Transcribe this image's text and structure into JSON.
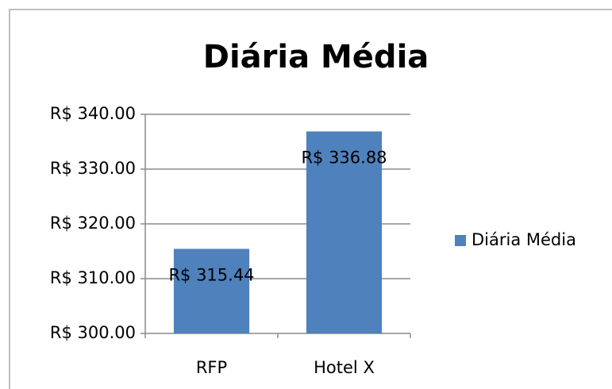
{
  "chart_data": {
    "type": "bar",
    "title": "Diária Média",
    "categories": [
      "RFP",
      "Hotel X"
    ],
    "series": [
      {
        "name": "Diária Média",
        "color": "#4f81bd",
        "values": [
          315.44,
          336.88
        ],
        "value_labels": [
          "R$ 315.44",
          "R$ 336.88"
        ]
      }
    ],
    "ylim": [
      300,
      340
    ],
    "yticks": [
      {
        "value": 300,
        "label": "R$ 300.00"
      },
      {
        "value": 310,
        "label": "R$ 310.00"
      },
      {
        "value": 320,
        "label": "R$ 320.00"
      },
      {
        "value": 330,
        "label": "R$ 330.00"
      },
      {
        "value": 340,
        "label": "R$ 340.00"
      }
    ],
    "grid": true,
    "legend": "right"
  }
}
